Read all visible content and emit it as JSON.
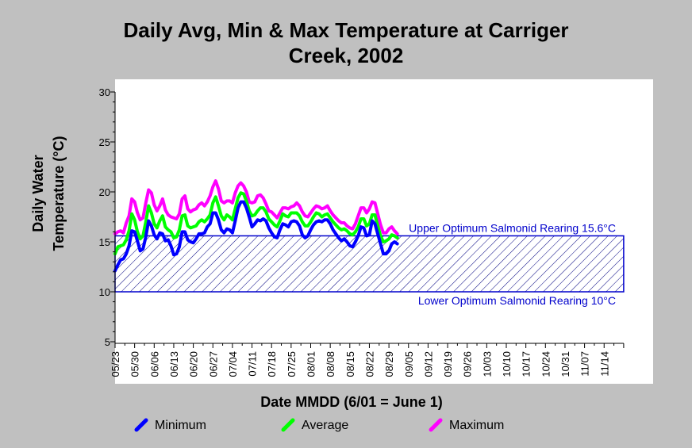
{
  "chart_data": {
    "type": "line",
    "title_lines": [
      "Daily Avg, Min & Max Temperature at Carriger",
      "Creek, 2002"
    ],
    "xlabel": "Date MMDD (6/01 = June 1)",
    "ylabel_lines": [
      "Daily Water",
      "Temperature (°C)"
    ],
    "ylim": [
      5,
      30
    ],
    "yticks": [
      5,
      10,
      15,
      20,
      25,
      30
    ],
    "x_tick_labels": [
      "05/23",
      "05/30",
      "06/06",
      "06/13",
      "06/20",
      "06/27",
      "07/04",
      "07/11",
      "07/18",
      "07/25",
      "08/01",
      "08/08",
      "08/15",
      "08/22",
      "08/29",
      "09/05",
      "09/12",
      "09/19",
      "09/26",
      "10/03",
      "10/10",
      "10/17",
      "10/24",
      "10/31",
      "11/07",
      "11/14"
    ],
    "x_start": "05/23",
    "grid": false,
    "legend_position": "bottom",
    "reference_band": {
      "lower": 10,
      "upper": 15.6,
      "end": "11/21",
      "upper_label": "Upper Optimum Salmonid Rearing 15.6°C",
      "lower_label": "Lower Optimum Salmonid Rearing 10°C",
      "color": "#0000cc"
    },
    "series": [
      {
        "name": "Minimum",
        "color": "#0000ff",
        "values": [
          12.1,
          12.7,
          13.2,
          13.3,
          13.8,
          14.6,
          16.1,
          16.0,
          15.1,
          14.1,
          14.3,
          15.5,
          17.1,
          16.6,
          15.7,
          15.3,
          15.9,
          15.8,
          15.1,
          15.2,
          14.6,
          13.7,
          13.8,
          14.5,
          16.0,
          16.0,
          15.2,
          15.0,
          14.9,
          15.3,
          15.8,
          15.8,
          15.9,
          16.5,
          16.8,
          17.9,
          17.9,
          17.2,
          16.2,
          15.9,
          16.3,
          16.2,
          15.9,
          17.1,
          18.4,
          19.0,
          19.0,
          18.4,
          17.5,
          16.5,
          16.8,
          17.2,
          17.1,
          17.3,
          17.1,
          16.4,
          15.9,
          15.5,
          15.4,
          16.2,
          16.8,
          16.7,
          16.5,
          17.0,
          17.1,
          17.0,
          16.6,
          15.7,
          15.4,
          15.6,
          16.2,
          16.7,
          17.0,
          17.1,
          17.0,
          17.2,
          17.2,
          16.8,
          16.2,
          15.8,
          15.4,
          15.1,
          15.3,
          15.0,
          14.6,
          14.5,
          15.0,
          15.6,
          16.5,
          16.4,
          15.6,
          15.7,
          17.1,
          16.8,
          15.8,
          14.8,
          13.8,
          13.8,
          14.1,
          14.8,
          15.0,
          14.8
        ]
      },
      {
        "name": "Average",
        "color": "#00ff00",
        "values": [
          13.8,
          14.5,
          14.6,
          14.7,
          15.2,
          16.1,
          17.8,
          17.2,
          16.0,
          15.3,
          15.6,
          17.0,
          18.6,
          17.9,
          16.8,
          16.4,
          17.1,
          17.6,
          16.5,
          16.2,
          16.0,
          15.4,
          15.5,
          16.2,
          17.6,
          17.7,
          16.6,
          16.4,
          16.5,
          16.6,
          17.0,
          17.2,
          17.0,
          17.3,
          17.7,
          18.9,
          19.5,
          18.6,
          17.6,
          17.2,
          17.7,
          17.5,
          17.2,
          18.3,
          19.4,
          19.9,
          19.8,
          19.1,
          18.1,
          17.6,
          17.7,
          18.1,
          18.4,
          18.4,
          18.0,
          17.3,
          17.0,
          16.7,
          16.5,
          17.1,
          17.8,
          17.6,
          17.5,
          17.9,
          17.9,
          17.9,
          17.6,
          17.0,
          16.6,
          16.6,
          17.0,
          17.5,
          17.9,
          17.8,
          17.5,
          17.7,
          17.8,
          17.4,
          17.0,
          16.7,
          16.4,
          16.2,
          16.3,
          16.1,
          15.8,
          15.7,
          16.0,
          16.5,
          17.3,
          17.3,
          16.6,
          16.8,
          17.7,
          17.7,
          16.6,
          15.6,
          15.0,
          15.1,
          15.3,
          15.7,
          15.6,
          15.4
        ]
      },
      {
        "name": "Maximum",
        "color": "#ff00ff",
        "values": [
          15.8,
          16.0,
          16.1,
          15.9,
          16.9,
          17.6,
          19.3,
          19.0,
          17.9,
          17.2,
          17.4,
          18.9,
          20.2,
          19.9,
          18.7,
          18.1,
          18.6,
          19.3,
          18.2,
          17.7,
          17.5,
          17.4,
          17.3,
          17.8,
          19.3,
          19.6,
          18.3,
          18.0,
          18.2,
          18.3,
          18.7,
          18.9,
          18.6,
          19.0,
          19.6,
          20.5,
          21.1,
          20.3,
          19.1,
          18.9,
          19.1,
          19.1,
          18.9,
          19.9,
          20.6,
          20.9,
          20.6,
          20.0,
          19.0,
          18.9,
          19.0,
          19.6,
          19.7,
          19.4,
          18.8,
          18.1,
          18.0,
          17.7,
          17.4,
          17.9,
          18.4,
          18.4,
          18.3,
          18.5,
          18.6,
          18.9,
          18.6,
          18.0,
          17.6,
          17.5,
          17.9,
          18.3,
          18.6,
          18.5,
          18.3,
          18.4,
          18.6,
          18.1,
          17.7,
          17.4,
          17.1,
          16.9,
          16.9,
          16.6,
          16.4,
          16.3,
          16.8,
          17.6,
          18.4,
          18.4,
          17.9,
          18.3,
          19.0,
          18.9,
          17.8,
          16.7,
          15.9,
          15.9,
          16.3,
          16.5,
          16.1,
          15.8
        ]
      }
    ]
  }
}
